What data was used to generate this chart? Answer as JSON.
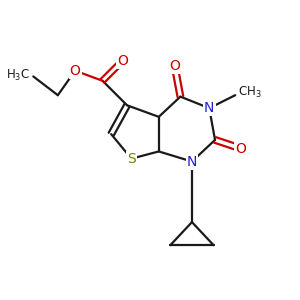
{
  "bond_color": "#1a1a1a",
  "n_color": "#2222cc",
  "o_color": "#cc0000",
  "s_color": "#808000",
  "figsize": [
    3.0,
    3.0
  ],
  "dpi": 100,
  "xlim": [
    0,
    10
  ],
  "ylim": [
    0,
    10
  ]
}
